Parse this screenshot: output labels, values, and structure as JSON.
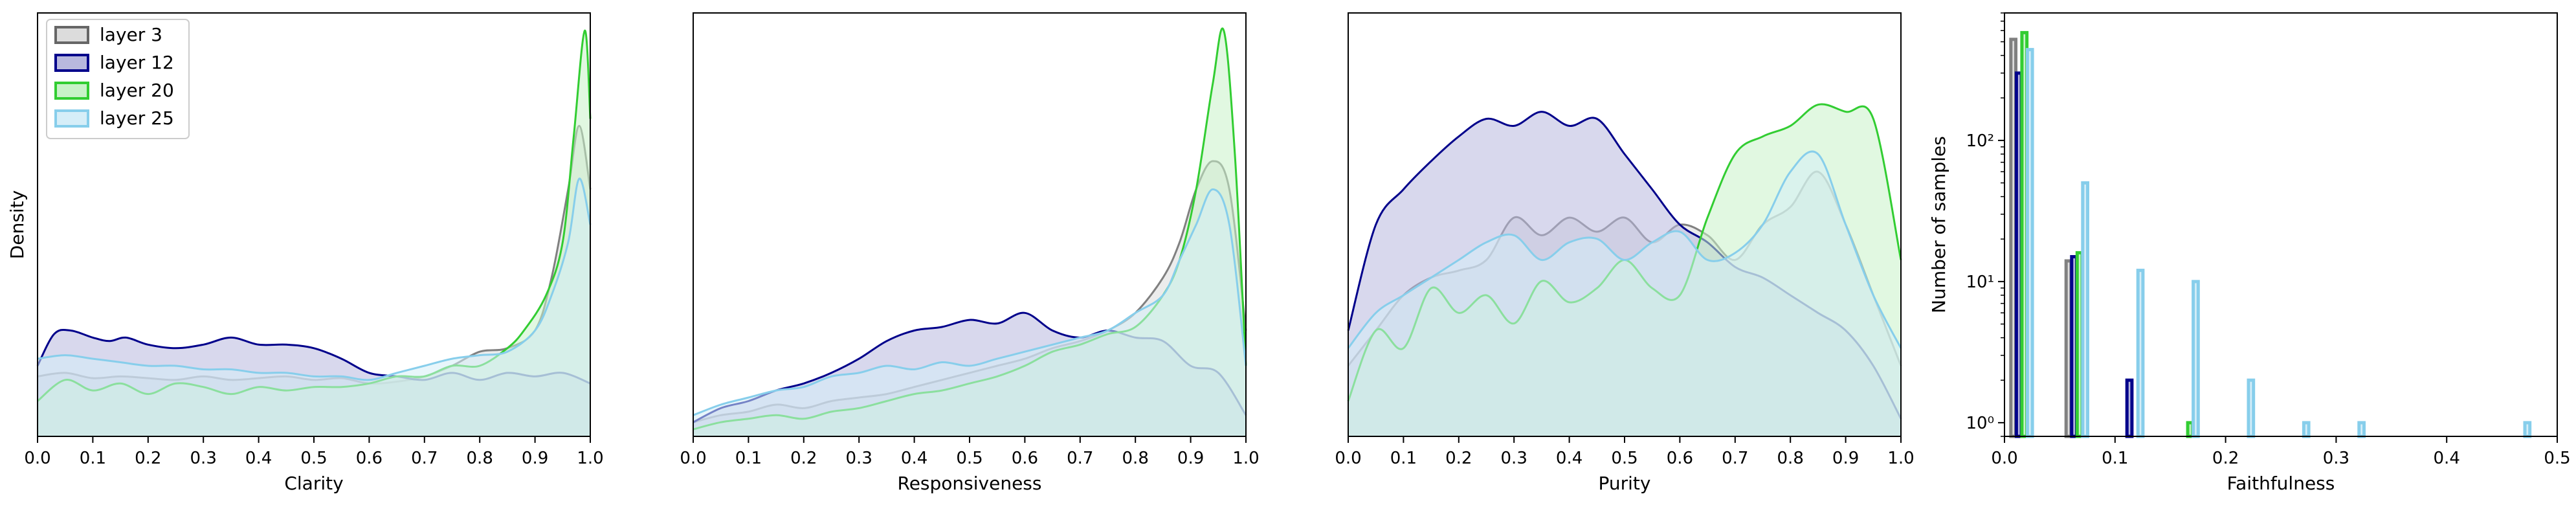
{
  "legend": {
    "placement": "upper-left",
    "entries": [
      {
        "label": "layer 3",
        "edge": "#666666",
        "fill": "#dcdcdc"
      },
      {
        "label": "layer 12",
        "edge": "#00008b",
        "fill": "#b8b8de"
      },
      {
        "label": "layer 20",
        "edge": "#32cd32",
        "fill": "#c8f2c8"
      },
      {
        "label": "layer 25",
        "edge": "#87ceeb",
        "fill": "#d6eef8"
      }
    ]
  },
  "chart_data": [
    {
      "type": "area",
      "xlabel": "Clarity",
      "ylabel": "Density",
      "xlim": [
        0,
        1
      ],
      "xticks": [
        "0.0",
        "0.1",
        "0.2",
        "0.3",
        "0.4",
        "0.5",
        "0.6",
        "0.7",
        "0.8",
        "0.9",
        "1.0"
      ],
      "series": [
        {
          "name": "layer 3",
          "color": "#808080",
          "fill": "#dcdcdc",
          "x": [
            0,
            0.05,
            0.1,
            0.15,
            0.2,
            0.25,
            0.3,
            0.35,
            0.4,
            0.45,
            0.5,
            0.55,
            0.6,
            0.65,
            0.7,
            0.75,
            0.8,
            0.85,
            0.9,
            0.93,
            0.96,
            0.98,
            1.0
          ],
          "y": [
            0.17,
            0.18,
            0.165,
            0.17,
            0.165,
            0.16,
            0.17,
            0.16,
            0.165,
            0.17,
            0.16,
            0.165,
            0.15,
            0.155,
            0.17,
            0.2,
            0.24,
            0.25,
            0.3,
            0.45,
            0.7,
            0.88,
            0.7
          ]
        },
        {
          "name": "layer 12",
          "color": "#00008b",
          "fill": "#b8b8de",
          "x": [
            0,
            0.03,
            0.06,
            0.1,
            0.13,
            0.16,
            0.2,
            0.25,
            0.3,
            0.35,
            0.4,
            0.45,
            0.5,
            0.55,
            0.6,
            0.65,
            0.7,
            0.75,
            0.8,
            0.85,
            0.9,
            0.95,
            1.0
          ],
          "y": [
            0.2,
            0.29,
            0.3,
            0.28,
            0.27,
            0.28,
            0.26,
            0.25,
            0.26,
            0.28,
            0.26,
            0.26,
            0.25,
            0.22,
            0.18,
            0.17,
            0.16,
            0.18,
            0.16,
            0.18,
            0.17,
            0.18,
            0.15
          ]
        },
        {
          "name": "layer 20",
          "color": "#32cd32",
          "fill": "#c8f2c8",
          "x": [
            0,
            0.05,
            0.1,
            0.15,
            0.2,
            0.25,
            0.3,
            0.35,
            0.4,
            0.45,
            0.5,
            0.55,
            0.6,
            0.65,
            0.7,
            0.75,
            0.8,
            0.85,
            0.88,
            0.92,
            0.95,
            0.97,
            0.99,
            1.0
          ],
          "y": [
            0.1,
            0.16,
            0.13,
            0.15,
            0.12,
            0.15,
            0.14,
            0.12,
            0.14,
            0.13,
            0.14,
            0.14,
            0.15,
            0.17,
            0.17,
            0.2,
            0.2,
            0.25,
            0.3,
            0.4,
            0.55,
            0.85,
            1.15,
            0.9
          ]
        },
        {
          "name": "layer 25",
          "color": "#87ceeb",
          "fill": "#d6eef8",
          "x": [
            0,
            0.05,
            0.1,
            0.15,
            0.2,
            0.25,
            0.3,
            0.35,
            0.4,
            0.45,
            0.5,
            0.55,
            0.6,
            0.65,
            0.7,
            0.75,
            0.8,
            0.85,
            0.9,
            0.93,
            0.96,
            0.98,
            1.0
          ],
          "y": [
            0.22,
            0.23,
            0.22,
            0.21,
            0.2,
            0.2,
            0.19,
            0.19,
            0.18,
            0.18,
            0.17,
            0.17,
            0.16,
            0.18,
            0.2,
            0.22,
            0.23,
            0.24,
            0.3,
            0.4,
            0.55,
            0.73,
            0.6
          ]
        }
      ]
    },
    {
      "type": "area",
      "xlabel": "Responsiveness",
      "ylabel": "",
      "xlim": [
        0,
        1
      ],
      "xticks": [
        "0.0",
        "0.1",
        "0.2",
        "0.3",
        "0.4",
        "0.5",
        "0.6",
        "0.7",
        "0.8",
        "0.9",
        "1.0"
      ],
      "series": [
        {
          "name": "layer 3",
          "color": "#808080",
          "fill": "#dcdcdc",
          "x": [
            0,
            0.05,
            0.1,
            0.15,
            0.2,
            0.25,
            0.3,
            0.35,
            0.4,
            0.45,
            0.5,
            0.55,
            0.6,
            0.65,
            0.7,
            0.75,
            0.8,
            0.85,
            0.88,
            0.91,
            0.94,
            0.97,
            1.0
          ],
          "y": [
            0.04,
            0.06,
            0.07,
            0.09,
            0.08,
            0.1,
            0.11,
            0.12,
            0.14,
            0.16,
            0.18,
            0.2,
            0.22,
            0.25,
            0.27,
            0.3,
            0.35,
            0.45,
            0.55,
            0.7,
            0.78,
            0.7,
            0.3
          ]
        },
        {
          "name": "layer 12",
          "color": "#00008b",
          "fill": "#b8b8de",
          "x": [
            0,
            0.05,
            0.1,
            0.15,
            0.2,
            0.25,
            0.3,
            0.35,
            0.4,
            0.45,
            0.5,
            0.55,
            0.6,
            0.65,
            0.7,
            0.75,
            0.8,
            0.85,
            0.9,
            0.95,
            1.0
          ],
          "y": [
            0.04,
            0.08,
            0.1,
            0.13,
            0.15,
            0.18,
            0.22,
            0.27,
            0.3,
            0.31,
            0.33,
            0.32,
            0.35,
            0.3,
            0.28,
            0.3,
            0.28,
            0.27,
            0.2,
            0.18,
            0.06
          ]
        },
        {
          "name": "layer 20",
          "color": "#32cd32",
          "fill": "#c8f2c8",
          "x": [
            0,
            0.05,
            0.1,
            0.15,
            0.2,
            0.25,
            0.3,
            0.35,
            0.4,
            0.45,
            0.5,
            0.55,
            0.6,
            0.65,
            0.7,
            0.75,
            0.8,
            0.85,
            0.88,
            0.91,
            0.94,
            0.96,
            0.98,
            1.0
          ],
          "y": [
            0.02,
            0.04,
            0.05,
            0.06,
            0.05,
            0.07,
            0.08,
            0.1,
            0.12,
            0.13,
            0.15,
            0.17,
            0.2,
            0.24,
            0.26,
            0.29,
            0.31,
            0.4,
            0.5,
            0.7,
            1.0,
            1.15,
            0.8,
            0.2
          ]
        },
        {
          "name": "layer 25",
          "color": "#87ceeb",
          "fill": "#d6eef8",
          "x": [
            0,
            0.05,
            0.1,
            0.15,
            0.2,
            0.25,
            0.3,
            0.35,
            0.4,
            0.45,
            0.5,
            0.55,
            0.6,
            0.65,
            0.7,
            0.75,
            0.8,
            0.85,
            0.88,
            0.91,
            0.94,
            0.97,
            1.0
          ],
          "y": [
            0.06,
            0.09,
            0.11,
            0.13,
            0.14,
            0.17,
            0.18,
            0.2,
            0.19,
            0.21,
            0.2,
            0.22,
            0.24,
            0.26,
            0.28,
            0.3,
            0.35,
            0.4,
            0.5,
            0.6,
            0.7,
            0.6,
            0.2
          ]
        }
      ]
    },
    {
      "type": "area",
      "xlabel": "Purity",
      "ylabel": "",
      "xlim": [
        0,
        1
      ],
      "xticks": [
        "0.0",
        "0.1",
        "0.2",
        "0.3",
        "0.4",
        "0.5",
        "0.6",
        "0.7",
        "0.8",
        "0.9",
        "1.0"
      ],
      "series": [
        {
          "name": "layer 3",
          "color": "#808080",
          "fill": "#dcdcdc",
          "x": [
            0,
            0.05,
            0.1,
            0.15,
            0.2,
            0.25,
            0.3,
            0.35,
            0.4,
            0.45,
            0.5,
            0.55,
            0.6,
            0.65,
            0.7,
            0.75,
            0.8,
            0.85,
            0.9,
            0.95,
            1.0
          ],
          "y": [
            0.2,
            0.3,
            0.4,
            0.45,
            0.47,
            0.5,
            0.62,
            0.57,
            0.62,
            0.58,
            0.62,
            0.55,
            0.6,
            0.57,
            0.5,
            0.6,
            0.65,
            0.75,
            0.6,
            0.4,
            0.2
          ]
        },
        {
          "name": "layer 12",
          "color": "#00008b",
          "fill": "#b8b8de",
          "x": [
            0,
            0.05,
            0.1,
            0.15,
            0.2,
            0.25,
            0.3,
            0.35,
            0.4,
            0.45,
            0.5,
            0.55,
            0.6,
            0.65,
            0.7,
            0.75,
            0.8,
            0.85,
            0.9,
            0.95,
            1.0
          ],
          "y": [
            0.3,
            0.6,
            0.7,
            0.78,
            0.85,
            0.9,
            0.88,
            0.92,
            0.88,
            0.9,
            0.8,
            0.7,
            0.6,
            0.55,
            0.48,
            0.45,
            0.4,
            0.35,
            0.3,
            0.2,
            0.05
          ]
        },
        {
          "name": "layer 20",
          "color": "#32cd32",
          "fill": "#c8f2c8",
          "x": [
            0,
            0.05,
            0.1,
            0.15,
            0.2,
            0.25,
            0.3,
            0.35,
            0.4,
            0.45,
            0.5,
            0.55,
            0.6,
            0.65,
            0.7,
            0.75,
            0.8,
            0.85,
            0.9,
            0.95,
            1.0
          ],
          "y": [
            0.1,
            0.3,
            0.25,
            0.42,
            0.35,
            0.4,
            0.32,
            0.44,
            0.38,
            0.42,
            0.5,
            0.42,
            0.4,
            0.62,
            0.8,
            0.85,
            0.88,
            0.94,
            0.92,
            0.9,
            0.5
          ]
        },
        {
          "name": "layer 25",
          "color": "#87ceeb",
          "fill": "#d6eef8",
          "x": [
            0,
            0.05,
            0.1,
            0.15,
            0.2,
            0.25,
            0.3,
            0.35,
            0.4,
            0.45,
            0.5,
            0.55,
            0.6,
            0.65,
            0.7,
            0.75,
            0.8,
            0.85,
            0.9,
            0.95,
            1.0
          ],
          "y": [
            0.25,
            0.35,
            0.4,
            0.45,
            0.5,
            0.55,
            0.57,
            0.5,
            0.55,
            0.56,
            0.5,
            0.55,
            0.58,
            0.5,
            0.52,
            0.6,
            0.75,
            0.8,
            0.6,
            0.4,
            0.25
          ]
        }
      ]
    },
    {
      "type": "bar",
      "xlabel": "Faithfulness",
      "ylabel": "Number of samples",
      "xlim": [
        0,
        0.5
      ],
      "yscale": "log",
      "ylim": [
        0.8,
        800
      ],
      "xticks": [
        "0.0",
        "0.1",
        "0.2",
        "0.3",
        "0.4",
        "0.5"
      ],
      "yticks": [
        "10⁰",
        "10¹",
        "10²"
      ],
      "series": [
        {
          "name": "layer 3",
          "color": "#808080",
          "fill": "#dcdcdc",
          "x": [
            0.0,
            0.05
          ],
          "values": [
            520,
            14
          ]
        },
        {
          "name": "layer 12",
          "color": "#00008b",
          "fill": "#b8b8de",
          "x": [
            0.0,
            0.05,
            0.1
          ],
          "values": [
            300,
            15,
            2
          ]
        },
        {
          "name": "layer 20",
          "color": "#32cd32",
          "fill": "#c8f2c8",
          "x": [
            0.0,
            0.05,
            0.15
          ],
          "values": [
            580,
            16,
            1
          ]
        },
        {
          "name": "layer 25",
          "color": "#87ceeb",
          "fill": "#d6eef8",
          "x": [
            0.0,
            0.05,
            0.1,
            0.15,
            0.2,
            0.25,
            0.3,
            0.45
          ],
          "values": [
            440,
            50,
            12,
            10,
            2,
            1,
            1,
            1
          ]
        }
      ]
    }
  ]
}
